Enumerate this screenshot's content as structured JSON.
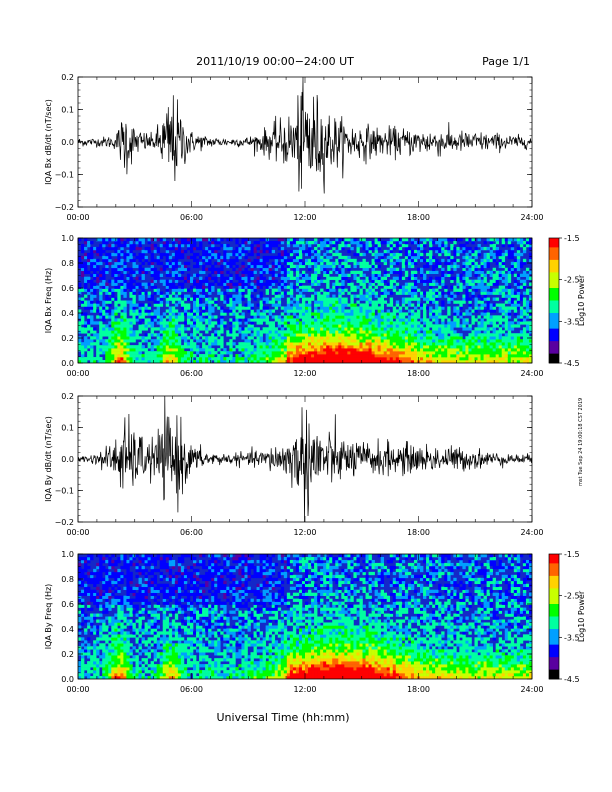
{
  "header": {
    "title": "2011/10/19   00:00−24:00 UT",
    "page": "Page 1/1"
  },
  "side_note": "mst Tue Sep 24 19:00:18 CST 2019",
  "xaxis": {
    "label": "Universal Time (hh:mm)",
    "ticks": [
      "00:00",
      "06:00",
      "12:00",
      "18:00",
      "24:00"
    ]
  },
  "colors": {
    "trace": "#000000",
    "spectrogram_bg": "#1428c8",
    "colorbar": [
      "#000000",
      "#5a00a0",
      "#0000ff",
      "#00a0ff",
      "#00ffa0",
      "#00ff00",
      "#c8ff00",
      "#ffd200",
      "#ff6400",
      "#ff0000"
    ]
  },
  "colorbar": {
    "label": "Log10 Power",
    "ticks": [
      "-1.5",
      "-2.5",
      "-3.5",
      "-4.5"
    ]
  },
  "chart_data": [
    {
      "type": "line",
      "ylabel": "IQA Bx dB/dt (nT/sec)",
      "ylim": [
        -0.2,
        0.2
      ],
      "yticks": [
        "0.2",
        "0.1",
        "0.0",
        "−0.1",
        "−0.2"
      ],
      "xlim": [
        0,
        24
      ],
      "envelope_x": [
        0,
        1,
        2,
        2.5,
        3,
        4,
        4.8,
        5,
        5.5,
        6,
        7,
        8,
        9,
        10,
        11,
        11.5,
        12,
        12.5,
        13,
        14,
        15,
        16,
        17,
        18,
        19,
        20,
        21,
        22,
        23,
        24
      ],
      "envelope_amp": [
        0.012,
        0.012,
        0.02,
        0.1,
        0.04,
        0.02,
        0.12,
        0.14,
        0.08,
        0.03,
        0.015,
        0.012,
        0.015,
        0.04,
        0.07,
        0.1,
        0.2,
        0.14,
        0.1,
        0.06,
        0.05,
        0.04,
        0.04,
        0.035,
        0.04,
        0.03,
        0.03,
        0.025,
        0.02,
        0.015
      ]
    },
    {
      "type": "heatmap",
      "ylabel": "IQA Bx Freq (Hz)",
      "ylim": [
        0,
        1.0
      ],
      "yticks": [
        "1.0",
        "0.8",
        "0.6",
        "0.4",
        "0.2",
        "0.0"
      ],
      "xlim": [
        0,
        24
      ]
    },
    {
      "type": "line",
      "ylabel": "IQA By dB/dt (nT/sec)",
      "ylim": [
        -0.2,
        0.2
      ],
      "yticks": [
        "0.2",
        "0.1",
        "0.0",
        "−0.1",
        "−0.2"
      ],
      "xlim": [
        0,
        24
      ],
      "envelope_x": [
        0,
        1,
        2,
        2.5,
        3,
        4,
        4.8,
        5,
        5.5,
        6,
        7,
        8,
        9,
        10,
        11,
        11.5,
        12,
        12.5,
        13,
        14,
        15,
        16,
        17,
        18,
        19,
        20,
        21,
        22,
        23,
        24
      ],
      "envelope_amp": [
        0.01,
        0.015,
        0.06,
        0.12,
        0.08,
        0.06,
        0.14,
        0.15,
        0.1,
        0.04,
        0.02,
        0.015,
        0.02,
        0.03,
        0.06,
        0.08,
        0.17,
        0.12,
        0.09,
        0.06,
        0.05,
        0.05,
        0.045,
        0.04,
        0.04,
        0.035,
        0.03,
        0.02,
        0.015,
        0.012
      ]
    },
    {
      "type": "heatmap",
      "ylabel": "IQA By Freq (Hz)",
      "ylim": [
        0,
        1.0
      ],
      "yticks": [
        "1.0",
        "0.8",
        "0.6",
        "0.4",
        "0.2",
        "0.0"
      ],
      "xlim": [
        0,
        24
      ]
    }
  ]
}
